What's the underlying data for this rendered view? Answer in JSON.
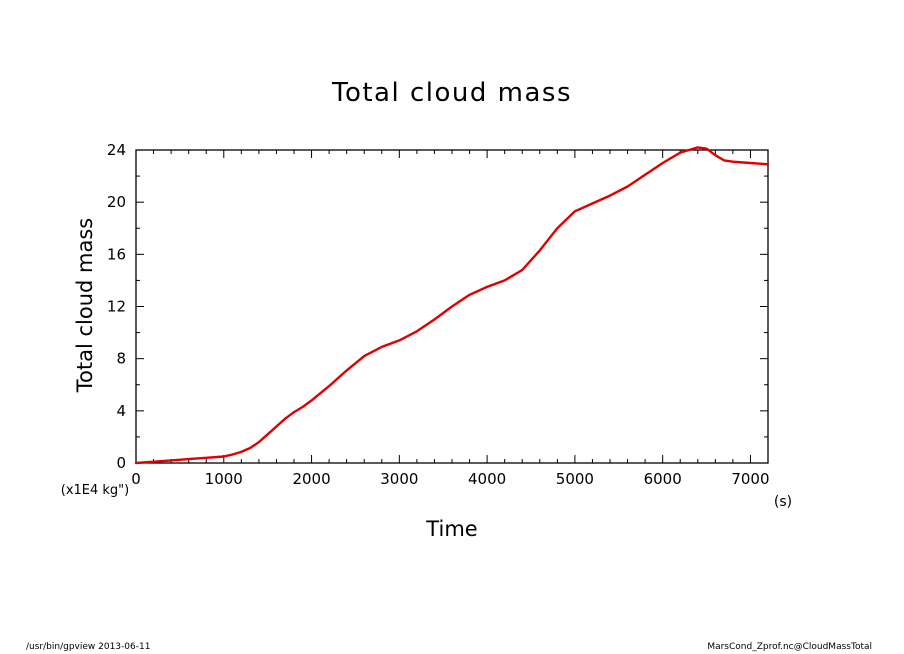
{
  "chart_data": {
    "type": "line",
    "title": "Total cloud mass",
    "xlabel": "Time",
    "xunit": "(s)",
    "ylabel": "Total cloud mass",
    "yunit": "(x1E4 kg\")",
    "xlim": [
      0,
      7200
    ],
    "ylim": [
      0,
      24
    ],
    "xticks": [
      0,
      1000,
      2000,
      3000,
      4000,
      5000,
      6000,
      7000
    ],
    "yticks": [
      0,
      4,
      8,
      12,
      16,
      20,
      24
    ],
    "grid": false,
    "series": [
      {
        "color": "#e00000",
        "x": [
          0,
          200,
          400,
          600,
          800,
          1000,
          1100,
          1200,
          1300,
          1400,
          1500,
          1600,
          1700,
          1800,
          1900,
          2000,
          2200,
          2400,
          2600,
          2800,
          3000,
          3200,
          3400,
          3600,
          3800,
          4000,
          4200,
          4400,
          4600,
          4800,
          5000,
          5200,
          5400,
          5600,
          5800,
          6000,
          6200,
          6400,
          6500,
          6600,
          6700,
          6800,
          7000,
          7200
        ],
        "y": [
          0,
          0.1,
          0.2,
          0.3,
          0.4,
          0.5,
          0.65,
          0.85,
          1.15,
          1.6,
          2.2,
          2.8,
          3.4,
          3.9,
          4.3,
          4.8,
          5.9,
          7.1,
          8.2,
          8.9,
          9.4,
          10.1,
          11.0,
          12.0,
          12.9,
          13.5,
          14.0,
          14.8,
          16.3,
          18.0,
          19.3,
          19.9,
          20.5,
          21.2,
          22.1,
          23.0,
          23.8,
          24.2,
          24.1,
          23.6,
          23.2,
          23.1,
          23.0,
          22.9
        ]
      }
    ]
  },
  "footer": {
    "left": "/usr/bin/gpview  2013-06-11",
    "right": "MarsCond_Zprof.nc@CloudMassTotal"
  }
}
